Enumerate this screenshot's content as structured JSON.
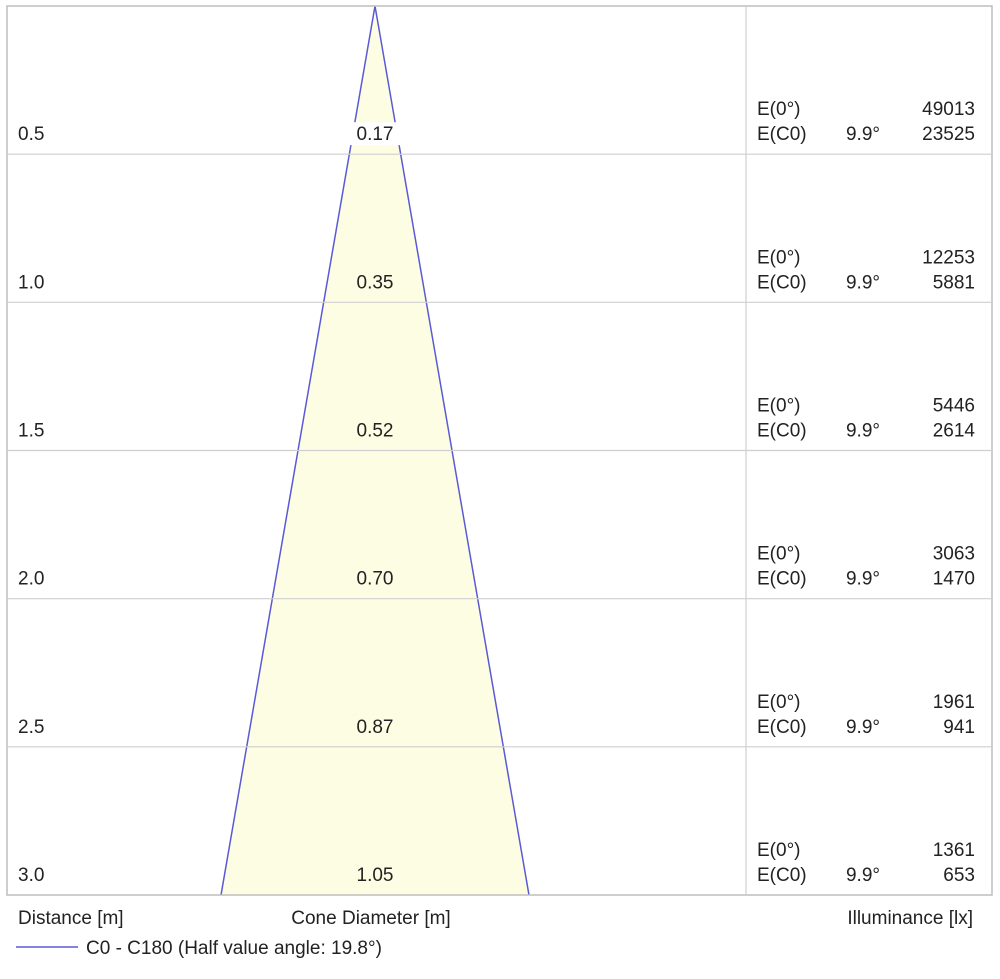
{
  "chart_data": {
    "type": "area",
    "title": "",
    "xlabel": "Cone Diameter [m]",
    "ylabel": "Distance [m]",
    "illuminance_header": "Illuminance [lx]",
    "legend": {
      "label": "C0 - C180 (Half value angle: 19.8°)",
      "color": "#5a5ad6",
      "placement": "bottom-left"
    },
    "cone_fill_color": "#fdfde3",
    "rows": [
      {
        "distance": "0.5",
        "diameter": "0.17",
        "e0_label": "E(0°)",
        "e0_value": "49013",
        "ec0_label": "E(C0)",
        "ec0_angle": "9.9°",
        "ec0_value": "23525"
      },
      {
        "distance": "1.0",
        "diameter": "0.35",
        "e0_label": "E(0°)",
        "e0_value": "12253",
        "ec0_label": "E(C0)",
        "ec0_angle": "9.9°",
        "ec0_value": "5881"
      },
      {
        "distance": "1.5",
        "diameter": "0.52",
        "e0_label": "E(0°)",
        "e0_value": "5446",
        "ec0_label": "E(C0)",
        "ec0_angle": "9.9°",
        "ec0_value": "2614"
      },
      {
        "distance": "2.0",
        "diameter": "0.70",
        "e0_label": "E(0°)",
        "e0_value": "3063",
        "ec0_label": "E(C0)",
        "ec0_angle": "9.9°",
        "ec0_value": "1470"
      },
      {
        "distance": "2.5",
        "diameter": "0.87",
        "e0_label": "E(0°)",
        "e0_value": "1961",
        "ec0_label": "E(C0)",
        "ec0_angle": "9.9°",
        "ec0_value": "941"
      },
      {
        "distance": "3.0",
        "diameter": "1.05",
        "e0_label": "E(0°)",
        "e0_value": "1361",
        "ec0_label": "E(C0)",
        "ec0_angle": "9.9°",
        "ec0_value": "653"
      }
    ]
  }
}
